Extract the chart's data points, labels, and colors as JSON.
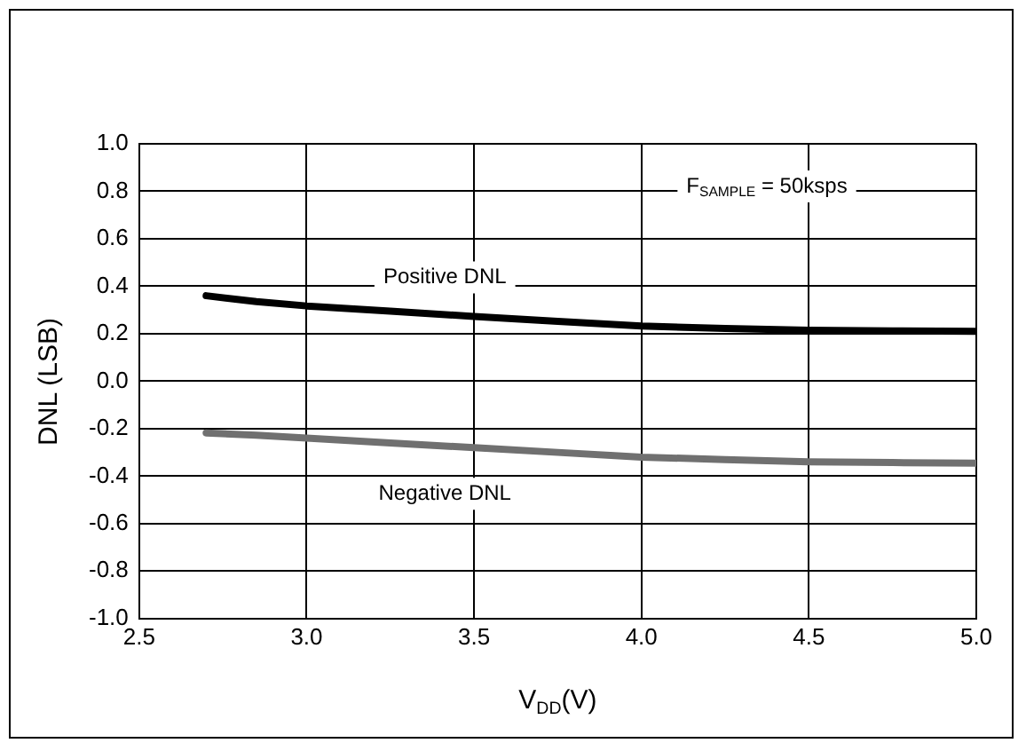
{
  "chart_data": {
    "type": "line",
    "xlabel": "V$_{DD}$(V)",
    "ylabel": "DNL (LSB)",
    "xlim": [
      2.5,
      5.0
    ],
    "xticks": [
      {
        "value": 2.5,
        "label": "2.5"
      },
      {
        "value": 3.0,
        "label": "3.0"
      },
      {
        "value": 3.5,
        "label": "3.5"
      },
      {
        "value": 4.0,
        "label": "4.0"
      },
      {
        "value": 4.5,
        "label": "4.5"
      },
      {
        "value": 5.0,
        "label": "5.0"
      }
    ],
    "ylim": [
      -1.0,
      1.0
    ],
    "yticks": [
      {
        "value": -1.0,
        "label": "-1.0"
      },
      {
        "value": -0.8,
        "label": "-0.8"
      },
      {
        "value": -0.6,
        "label": "-0.6"
      },
      {
        "value": -0.4,
        "label": "-0.4"
      },
      {
        "value": -0.2,
        "label": "-0.2"
      },
      {
        "value": 0,
        "label": "0.0"
      },
      {
        "value": 0.2,
        "label": "0.2"
      },
      {
        "value": 0.4,
        "label": "0.4"
      },
      {
        "value": 0.6,
        "label": "0.6"
      },
      {
        "value": 0.8,
        "label": "0.8"
      },
      {
        "value": 1.0,
        "label": "1.0"
      }
    ],
    "grid": true,
    "legend": false,
    "marker": "none",
    "line_style": "solid",
    "x": [
      2.7,
      2.85,
      3.0,
      3.25,
      3.5,
      3.75,
      4.0,
      4.25,
      4.5,
      4.75,
      5.0
    ],
    "series": [
      {
        "name": "Positive DNL",
        "color": "#000000",
        "values": [
          0.36,
          0.335,
          0.317,
          0.295,
          0.273,
          0.252,
          0.232,
          0.222,
          0.215,
          0.212,
          0.21
        ]
      },
      {
        "name": "Negative DNL",
        "color": "#707070",
        "values": [
          -0.218,
          -0.228,
          -0.24,
          -0.26,
          -0.28,
          -0.3,
          -0.32,
          -0.33,
          -0.34,
          -0.343,
          -0.345
        ]
      }
    ],
    "annotations": [
      "F$_{SAMPLE}$ = 50ksps"
    ]
  }
}
